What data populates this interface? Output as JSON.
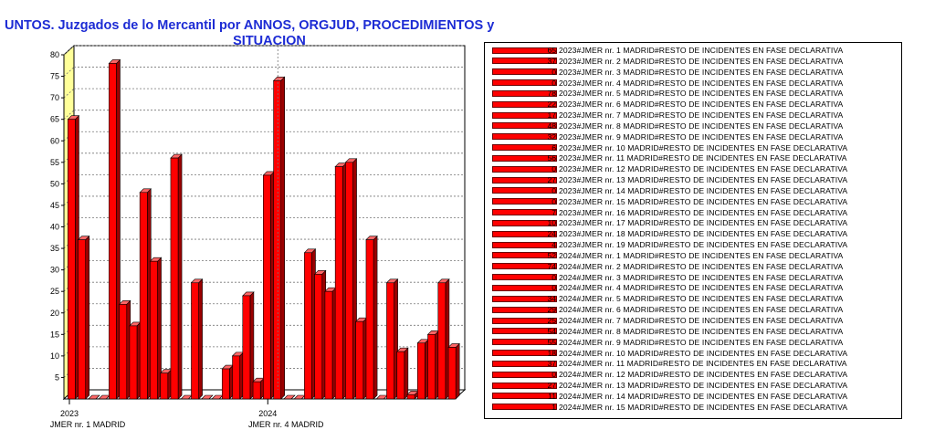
{
  "title": {
    "line1": "UNTOS. Juzgados de lo Mercantil por ANNOS, ORGJUD, PROCEDIMIENTOS y",
    "line2": "SITUACION"
  },
  "colors": {
    "bar": "#ff0000",
    "bar_dark": "#9a0000",
    "wall": "#ffff99",
    "title": "#1c2bd4"
  },
  "chart_data": {
    "type": "bar",
    "title": "UNTOS. Juzgados de lo Mercantil por ANNOS, ORGJUD, PROCEDIMIENTOS y SITUACION",
    "ylim": [
      0,
      80
    ],
    "yticks": [
      5,
      10,
      15,
      20,
      25,
      30,
      35,
      40,
      45,
      50,
      55,
      60,
      65,
      70,
      75,
      80
    ],
    "grid": true,
    "legend_position": "right",
    "x_group_labels": [
      {
        "year": "2023",
        "org": "JMER nr. 1 MADRID"
      },
      {
        "year": "2024",
        "org": "JMER nr. 4 MADRID"
      }
    ],
    "series": [
      {
        "name": "2023#JMER nr. 1 MADRID#RESTO DE INCIDENTES EN FASE DECLARATIVA",
        "value": 65
      },
      {
        "name": "2023#JMER nr. 2 MADRID#RESTO DE INCIDENTES EN FASE DECLARATIVA",
        "value": 37
      },
      {
        "name": "2023#JMER nr. 3 MADRID#RESTO DE INCIDENTES EN FASE DECLARATIVA",
        "value": 0
      },
      {
        "name": "2023#JMER nr. 4 MADRID#RESTO DE INCIDENTES EN FASE DECLARATIVA",
        "value": 0
      },
      {
        "name": "2023#JMER nr. 5 MADRID#RESTO DE INCIDENTES EN FASE DECLARATIVA",
        "value": 78
      },
      {
        "name": "2023#JMER nr. 6 MADRID#RESTO DE INCIDENTES EN FASE DECLARATIVA",
        "value": 22
      },
      {
        "name": "2023#JMER nr. 7 MADRID#RESTO DE INCIDENTES EN FASE DECLARATIVA",
        "value": 17
      },
      {
        "name": "2023#JMER nr. 8 MADRID#RESTO DE INCIDENTES EN FASE DECLARATIVA",
        "value": 48
      },
      {
        "name": "2023#JMER nr. 9 MADRID#RESTO DE INCIDENTES EN FASE DECLARATIVA",
        "value": 32
      },
      {
        "name": "2023#JMER nr. 10 MADRID#RESTO DE INCIDENTES EN FASE DECLARATIVA",
        "value": 6
      },
      {
        "name": "2023#JMER nr. 11 MADRID#RESTO DE INCIDENTES EN FASE DECLARATIVA",
        "value": 56
      },
      {
        "name": "2023#JMER nr. 12 MADRID#RESTO DE INCIDENTES EN FASE DECLARATIVA",
        "value": 0
      },
      {
        "name": "2023#JMER nr. 13 MADRID#RESTO DE INCIDENTES EN FASE DECLARATIVA",
        "value": 27
      },
      {
        "name": "2023#JMER nr. 14 MADRID#RESTO DE INCIDENTES EN FASE DECLARATIVA",
        "value": 0
      },
      {
        "name": "2023#JMER nr. 15 MADRID#RESTO DE INCIDENTES EN FASE DECLARATIVA",
        "value": 0
      },
      {
        "name": "2023#JMER nr. 16 MADRID#RESTO DE INCIDENTES EN FASE DECLARATIVA",
        "value": 7
      },
      {
        "name": "2023#JMER nr. 17 MADRID#RESTO DE INCIDENTES EN FASE DECLARATIVA",
        "value": 10
      },
      {
        "name": "2023#JMER nr. 18 MADRID#RESTO DE INCIDENTES EN FASE DECLARATIVA",
        "value": 24
      },
      {
        "name": "2023#JMER nr. 19 MADRID#RESTO DE INCIDENTES EN FASE DECLARATIVA",
        "value": 4
      },
      {
        "name": "2024#JMER nr. 1 MADRID#RESTO DE INCIDENTES EN FASE DECLARATIVA",
        "value": 52
      },
      {
        "name": "2024#JMER nr. 2 MADRID#RESTO DE INCIDENTES EN FASE DECLARATIVA",
        "value": 74
      },
      {
        "name": "2024#JMER nr. 3 MADRID#RESTO DE INCIDENTES EN FASE DECLARATIVA",
        "value": 0
      },
      {
        "name": "2024#JMER nr. 4 MADRID#RESTO DE INCIDENTES EN FASE DECLARATIVA",
        "value": 0
      },
      {
        "name": "2024#JMER nr. 5 MADRID#RESTO DE INCIDENTES EN FASE DECLARATIVA",
        "value": 34
      },
      {
        "name": "2024#JMER nr. 6 MADRID#RESTO DE INCIDENTES EN FASE DECLARATIVA",
        "value": 29
      },
      {
        "name": "2024#JMER nr. 7 MADRID#RESTO DE INCIDENTES EN FASE DECLARATIVA",
        "value": 25
      },
      {
        "name": "2024#JMER nr. 8 MADRID#RESTO DE INCIDENTES EN FASE DECLARATIVA",
        "value": 54
      },
      {
        "name": "2024#JMER nr. 9 MADRID#RESTO DE INCIDENTES EN FASE DECLARATIVA",
        "value": 55
      },
      {
        "name": "2024#JMER nr. 10 MADRID#RESTO DE INCIDENTES EN FASE DECLARATIVA",
        "value": 18
      },
      {
        "name": "2024#JMER nr. 11 MADRID#RESTO DE INCIDENTES EN FASE DECLARATIVA",
        "value": 37
      },
      {
        "name": "2024#JMER nr. 12 MADRID#RESTO DE INCIDENTES EN FASE DECLARATIVA",
        "value": 0
      },
      {
        "name": "2024#JMER nr. 13 MADRID#RESTO DE INCIDENTES EN FASE DECLARATIVA",
        "value": 27
      },
      {
        "name": "2024#JMER nr. 14 MADRID#RESTO DE INCIDENTES EN FASE DECLARATIVA",
        "value": 11
      },
      {
        "name": "2024#JMER nr. 15 MADRID#RESTO DE INCIDENTES EN FASE DECLARATIVA",
        "value": 1
      }
    ],
    "extra_bars": [
      13,
      15,
      27,
      12
    ]
  }
}
